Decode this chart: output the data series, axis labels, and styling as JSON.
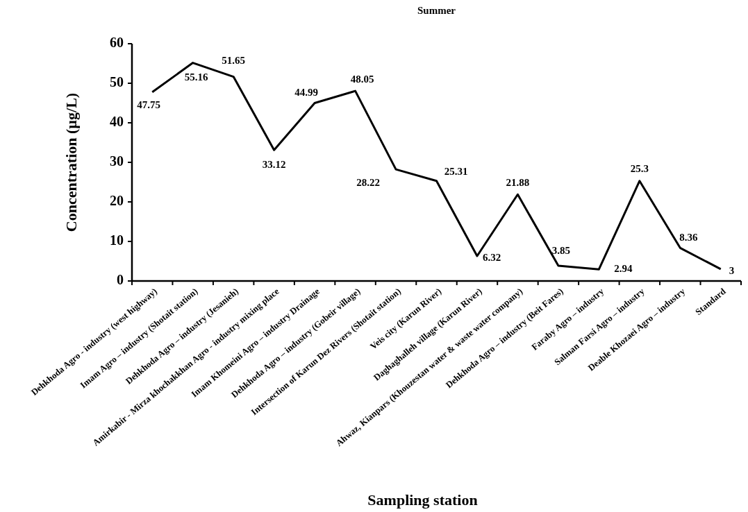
{
  "chart_data": {
    "type": "line",
    "title": "Summer",
    "xlabel": "Sampling station",
    "ylabel": "Concentration (µg/L)",
    "categories": [
      "Dehkhoda  Agro - industry (west highway)",
      "Imam Agro – industry (Shotait station)",
      "Dehkhoda Agro – industry (Jesanieh)",
      "Amirkabir - Mirza khochakkhan Agro - industry mixing place",
      "Imam Khomeini Agro – industry Drainage",
      "Dehkhoda Agro – industry (Gobeir village)",
      "Intersection of Karun Dez Rivers (Shotait station)",
      "Veis city (Karun River)",
      "Daghaghalleh village (Karun River)",
      "Ahwaz, Kianpars (Khouzestan water & waste water company)",
      "Dehkhoda Agro – industry (Beit Fares)",
      "Faraby Agro – industry",
      "Salman Farsi Agro – industry",
      "Deable Khozaei Agro – industry",
      "Standard"
    ],
    "series": [
      {
        "color": "#000000",
        "values": [
          47.75,
          55.16,
          51.65,
          33.12,
          44.99,
          48.05,
          28.22,
          25.31,
          6.32,
          21.88,
          3.85,
          2.94,
          25.3,
          8.36,
          3
        ]
      }
    ],
    "ylim": [
      0,
      60
    ],
    "yticks": [
      0,
      10,
      20,
      30,
      40,
      50,
      60
    ],
    "data_labels": true,
    "marker": "none",
    "line_style": "solid",
    "grid": false
  }
}
